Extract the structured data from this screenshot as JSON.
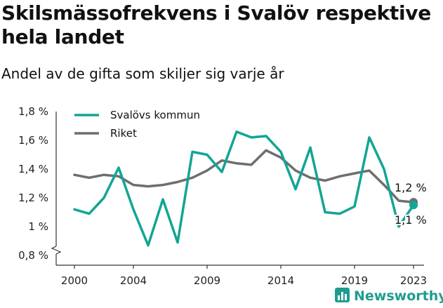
{
  "chart_data": {
    "type": "line",
    "title": "Skilsmässofrekvens i Svalöv respektive hela landet",
    "subtitle": "Andel av de gifta som skiljer sig varje år",
    "x": [
      2000,
      2001,
      2002,
      2003,
      2004,
      2005,
      2006,
      2007,
      2008,
      2009,
      2010,
      2011,
      2012,
      2013,
      2014,
      2015,
      2016,
      2017,
      2018,
      2019,
      2020,
      2021,
      2022,
      2023
    ],
    "x_tick_labels": [
      "2000",
      "2004",
      "2009",
      "2014",
      "2019",
      "2023"
    ],
    "y_tick_labels": [
      "0,8 %",
      "1 %",
      "1,2 %",
      "1,4 %",
      "1,6 %",
      "1,8 %"
    ],
    "ylim": [
      0.8,
      1.8
    ],
    "y_axis_broken": true,
    "grid": false,
    "legend_position": "top-left",
    "series": [
      {
        "name": "Svalövs kommun",
        "color": "#12a595",
        "values": [
          1.12,
          1.09,
          1.2,
          1.41,
          1.12,
          0.87,
          1.19,
          0.89,
          1.52,
          1.5,
          1.38,
          1.66,
          1.62,
          1.63,
          1.52,
          1.26,
          1.55,
          1.1,
          1.09,
          1.14,
          1.62,
          1.4,
          1.0,
          1.15
        ],
        "end_label": "1,1 %"
      },
      {
        "name": "Riket",
        "color": "#6e6e6e",
        "values": [
          1.36,
          1.34,
          1.36,
          1.35,
          1.29,
          1.28,
          1.29,
          1.31,
          1.34,
          1.39,
          1.46,
          1.44,
          1.43,
          1.53,
          1.48,
          1.39,
          1.34,
          1.32,
          1.35,
          1.37,
          1.39,
          1.29,
          1.18,
          1.17
        ],
        "end_label": "1,2 %"
      }
    ]
  },
  "branding": {
    "name": "Newsworthy",
    "icon": "bar-chart-logo-icon",
    "color": "#1f9c8e"
  }
}
